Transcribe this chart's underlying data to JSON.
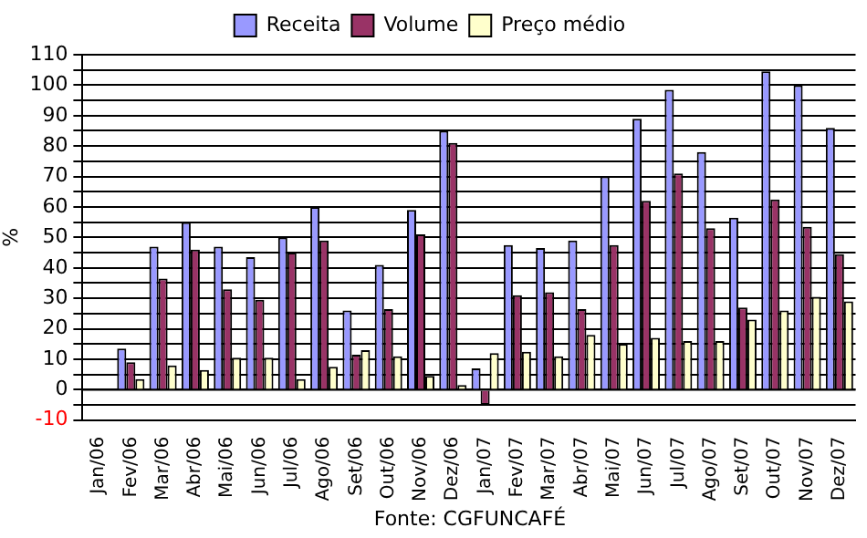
{
  "chart_data": {
    "type": "bar",
    "ylabel": "%",
    "annotations": [
      "Fonte: CGFUNCAFÉ"
    ],
    "categories": [
      "Jan/06",
      "Fev/06",
      "Mar/06",
      "Abr/06",
      "Mai/06",
      "Jun/06",
      "Jul/06",
      "Ago/06",
      "Set/06",
      "Out/06",
      "Nov/06",
      "Dez/06",
      "Jan/07",
      "Fev/07",
      "Mar/07",
      "Abr/07",
      "Mai/07",
      "Jun/07",
      "Jul/07",
      "Ago/07",
      "Set/07",
      "Out/07",
      "Nov/07",
      "Dez/07"
    ],
    "series": [
      {
        "name": "Receita",
        "color": "#9999ff",
        "values": [
          null,
          13.5,
          47,
          55,
          47,
          43.5,
          50,
          60,
          26,
          41,
          59,
          85,
          7,
          47.5,
          46.5,
          49,
          70,
          89,
          98.5,
          78,
          56.5,
          104.5,
          100,
          86
        ]
      },
      {
        "name": "Volume",
        "color": "#993366",
        "values": [
          null,
          9,
          36.5,
          46,
          33,
          29.5,
          45,
          49,
          11.5,
          26.5,
          51,
          81,
          -5,
          31,
          32,
          26.5,
          47.5,
          62,
          71,
          53,
          27,
          62.5,
          53.5,
          44.5
        ]
      },
      {
        "name": "Preço médio",
        "color": "#ffffcc",
        "values": [
          null,
          3.5,
          8,
          6.5,
          10.5,
          10.5,
          3.5,
          7.5,
          13,
          11,
          4.5,
          1.5,
          12,
          12.5,
          11,
          18,
          15,
          17,
          16,
          16,
          23,
          26,
          30.5,
          29
        ]
      }
    ],
    "ylim": [
      -10,
      110
    ],
    "yticks": [
      -10,
      {
        "value": -5,
        "label": null
      },
      0,
      {
        "value": 5,
        "label": null
      },
      10,
      {
        "value": 15,
        "label": null
      },
      20,
      {
        "value": 25,
        "label": null
      },
      30,
      {
        "value": 35,
        "label": null
      },
      40,
      {
        "value": 45,
        "label": null
      },
      50,
      {
        "value": 55,
        "label": null
      },
      60,
      {
        "value": 65,
        "label": null
      },
      70,
      {
        "value": 75,
        "label": null
      },
      80,
      {
        "value": 85,
        "label": null
      },
      90,
      {
        "value": 95,
        "label": null
      },
      100,
      {
        "value": 105,
        "label": null
      },
      110
    ],
    "grid": "y",
    "legend": "top"
  }
}
